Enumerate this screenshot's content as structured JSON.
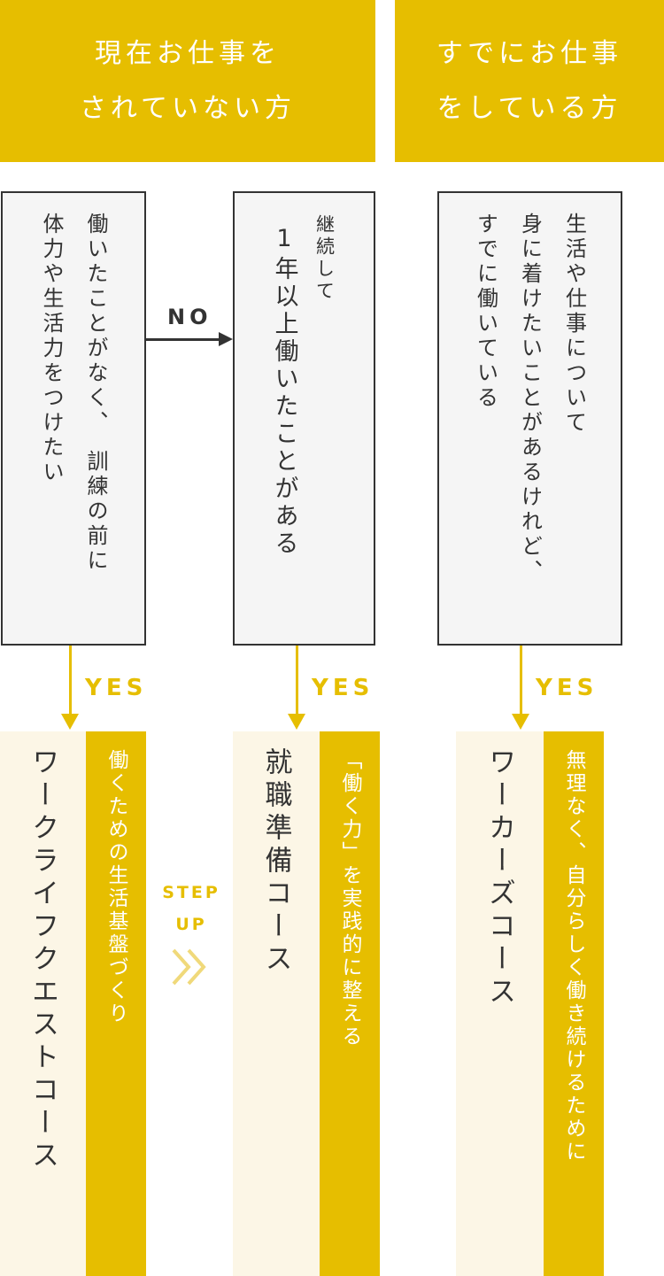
{
  "headers": [
    {
      "line1": "現在お仕事を",
      "line2": "されていない方"
    },
    {
      "line1": "すでにお仕事",
      "line2": "をしている方"
    }
  ],
  "questions": [
    {
      "lines": [
        "働いたことがなく、　訓練の前に",
        "体力や生活力をつけたい"
      ]
    },
    {
      "small": "継続して",
      "main": "1年以上働いたことがある"
    },
    {
      "lines": [
        "生活や仕事について",
        "身に着けたいことがあるけれど、",
        "すでに働いている"
      ]
    }
  ],
  "arrow_no": "NO",
  "arrow_yes": "YES",
  "step_up": {
    "line1": "STEP",
    "line2": "UP",
    "icon": "double-chevron-right-icon"
  },
  "courses": [
    {
      "title": "ワークライフクエストコース",
      "subtitle": "働くための生活基盤づくり"
    },
    {
      "title": "就職準備コース",
      "subtitle": "「働く力」を実践的に整える"
    },
    {
      "title": "ワーカーズコース",
      "subtitle": "無理なく、自分らしく働き続けるために"
    }
  ],
  "colors": {
    "accent": "#E6BE00",
    "cream": "#FCF6E6",
    "box": "#F5F5F5",
    "ink": "#333333"
  }
}
